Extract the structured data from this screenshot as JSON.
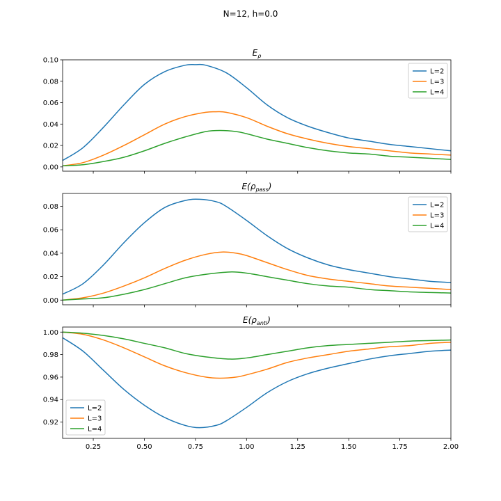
{
  "figure": {
    "suptitle": "N=12, h=0.0"
  },
  "colors": {
    "L2": "#1f77b4",
    "L3": "#ff7f0e",
    "L4": "#2ca02c"
  },
  "chart_data": [
    {
      "type": "line",
      "title_base": "E",
      "title_sub": "ρ",
      "legend_position": "upper right",
      "xlim": [
        0.1,
        2.0
      ],
      "ylim": [
        -0.004,
        0.1
      ],
      "x_ticks": [
        0.25,
        0.5,
        0.75,
        1.0,
        1.25,
        1.5,
        1.75,
        2.0
      ],
      "x_tick_labels_visible": false,
      "y_ticks": [
        0.0,
        0.02,
        0.04,
        0.06,
        0.08,
        0.1
      ],
      "y_tick_labels": [
        "0.00",
        "0.02",
        "0.04",
        "0.06",
        "0.08",
        "0.10"
      ],
      "series": [
        {
          "name": "L=2",
          "color": "#1f77b4",
          "x": [
            0.1,
            0.2,
            0.3,
            0.4,
            0.5,
            0.6,
            0.7,
            0.75,
            0.8,
            0.9,
            1.0,
            1.1,
            1.2,
            1.3,
            1.4,
            1.5,
            1.6,
            1.7,
            1.8,
            1.9,
            2.0
          ],
          "y": [
            0.006,
            0.018,
            0.037,
            0.058,
            0.077,
            0.089,
            0.095,
            0.0955,
            0.095,
            0.088,
            0.074,
            0.058,
            0.046,
            0.038,
            0.032,
            0.027,
            0.024,
            0.021,
            0.019,
            0.017,
            0.015
          ]
        },
        {
          "name": "L=3",
          "color": "#ff7f0e",
          "x": [
            0.1,
            0.2,
            0.3,
            0.4,
            0.5,
            0.6,
            0.7,
            0.8,
            0.85,
            0.9,
            1.0,
            1.1,
            1.2,
            1.3,
            1.4,
            1.5,
            1.6,
            1.7,
            1.8,
            1.9,
            2.0
          ],
          "y": [
            0.001,
            0.004,
            0.011,
            0.02,
            0.03,
            0.04,
            0.047,
            0.051,
            0.0515,
            0.051,
            0.046,
            0.038,
            0.031,
            0.026,
            0.022,
            0.019,
            0.017,
            0.015,
            0.013,
            0.012,
            0.011
          ]
        },
        {
          "name": "L=4",
          "color": "#2ca02c",
          "x": [
            0.1,
            0.2,
            0.3,
            0.4,
            0.5,
            0.6,
            0.7,
            0.8,
            0.87,
            0.95,
            1.0,
            1.1,
            1.2,
            1.3,
            1.4,
            1.5,
            1.6,
            1.7,
            1.8,
            1.9,
            2.0
          ],
          "y": [
            0.001,
            0.002,
            0.005,
            0.009,
            0.015,
            0.022,
            0.028,
            0.033,
            0.034,
            0.033,
            0.031,
            0.026,
            0.022,
            0.018,
            0.015,
            0.013,
            0.012,
            0.01,
            0.009,
            0.008,
            0.007
          ]
        }
      ]
    },
    {
      "type": "line",
      "title_base": "E(",
      "title_sub": "pass",
      "title_end": ")",
      "legend_position": "upper right",
      "xlim": [
        0.1,
        2.0
      ],
      "ylim": [
        -0.004,
        0.091
      ],
      "x_ticks": [
        0.25,
        0.5,
        0.75,
        1.0,
        1.25,
        1.5,
        1.75,
        2.0
      ],
      "x_tick_labels_visible": false,
      "y_ticks": [
        0.0,
        0.02,
        0.04,
        0.06,
        0.08
      ],
      "y_tick_labels": [
        "0.00",
        "0.02",
        "0.04",
        "0.06",
        "0.08"
      ],
      "series": [
        {
          "name": "L=2",
          "color": "#1f77b4",
          "x": [
            0.1,
            0.2,
            0.3,
            0.4,
            0.5,
            0.6,
            0.7,
            0.77,
            0.85,
            0.9,
            1.0,
            1.1,
            1.2,
            1.3,
            1.4,
            1.5,
            1.6,
            1.7,
            1.8,
            1.9,
            2.0
          ],
          "y": [
            0.005,
            0.014,
            0.03,
            0.049,
            0.066,
            0.079,
            0.085,
            0.086,
            0.084,
            0.08,
            0.068,
            0.055,
            0.044,
            0.036,
            0.03,
            0.026,
            0.023,
            0.02,
            0.018,
            0.016,
            0.015
          ]
        },
        {
          "name": "L=3",
          "color": "#ff7f0e",
          "x": [
            0.1,
            0.2,
            0.3,
            0.4,
            0.5,
            0.6,
            0.7,
            0.8,
            0.88,
            0.95,
            1.0,
            1.1,
            1.2,
            1.3,
            1.4,
            1.5,
            1.6,
            1.7,
            1.8,
            1.9,
            2.0
          ],
          "y": [
            0.0,
            0.002,
            0.006,
            0.012,
            0.019,
            0.027,
            0.034,
            0.039,
            0.041,
            0.04,
            0.038,
            0.032,
            0.026,
            0.021,
            0.018,
            0.016,
            0.014,
            0.012,
            0.011,
            0.01,
            0.009
          ]
        },
        {
          "name": "L=4",
          "color": "#2ca02c",
          "x": [
            0.1,
            0.2,
            0.3,
            0.4,
            0.5,
            0.6,
            0.7,
            0.8,
            0.92,
            1.0,
            1.1,
            1.2,
            1.3,
            1.4,
            1.5,
            1.6,
            1.7,
            1.8,
            1.9,
            2.0
          ],
          "y": [
            0.0,
            0.001,
            0.002,
            0.005,
            0.009,
            0.014,
            0.019,
            0.022,
            0.024,
            0.023,
            0.02,
            0.017,
            0.014,
            0.012,
            0.011,
            0.009,
            0.008,
            0.007,
            0.0065,
            0.006
          ]
        }
      ]
    },
    {
      "type": "line",
      "title_base": "E(",
      "title_sub": "anti",
      "title_end": ")",
      "legend_position": "lower left",
      "xlim": [
        0.1,
        2.0
      ],
      "ylim": [
        0.9055,
        1.0045
      ],
      "x_ticks": [
        0.25,
        0.5,
        0.75,
        1.0,
        1.25,
        1.5,
        1.75,
        2.0
      ],
      "x_tick_labels": [
        "0.25",
        "0.50",
        "0.75",
        "1.00",
        "1.25",
        "1.50",
        "1.75",
        "2.00"
      ],
      "y_ticks": [
        0.92,
        0.94,
        0.96,
        0.98,
        1.0
      ],
      "y_tick_labels": [
        "0.92",
        "0.94",
        "0.96",
        "0.98",
        "1.00"
      ],
      "series": [
        {
          "name": "L=2",
          "color": "#1f77b4",
          "x": [
            0.1,
            0.2,
            0.3,
            0.4,
            0.5,
            0.6,
            0.7,
            0.77,
            0.85,
            0.9,
            1.0,
            1.1,
            1.2,
            1.3,
            1.4,
            1.5,
            1.6,
            1.7,
            1.8,
            1.9,
            2.0
          ],
          "y": [
            0.995,
            0.983,
            0.966,
            0.949,
            0.935,
            0.924,
            0.917,
            0.915,
            0.917,
            0.921,
            0.933,
            0.946,
            0.956,
            0.963,
            0.968,
            0.972,
            0.976,
            0.979,
            0.981,
            0.983,
            0.984
          ]
        },
        {
          "name": "L=3",
          "color": "#ff7f0e",
          "x": [
            0.1,
            0.2,
            0.3,
            0.4,
            0.5,
            0.6,
            0.7,
            0.8,
            0.87,
            0.95,
            1.0,
            1.1,
            1.2,
            1.3,
            1.4,
            1.5,
            1.6,
            1.7,
            1.8,
            1.9,
            2.0
          ],
          "y": [
            1.0,
            0.998,
            0.993,
            0.986,
            0.978,
            0.97,
            0.964,
            0.96,
            0.959,
            0.96,
            0.962,
            0.967,
            0.973,
            0.977,
            0.98,
            0.983,
            0.985,
            0.987,
            0.988,
            0.99,
            0.991
          ]
        },
        {
          "name": "L=4",
          "color": "#2ca02c",
          "x": [
            0.1,
            0.2,
            0.3,
            0.4,
            0.5,
            0.6,
            0.7,
            0.8,
            0.92,
            1.0,
            1.1,
            1.2,
            1.3,
            1.4,
            1.5,
            1.6,
            1.7,
            1.8,
            1.9,
            2.0
          ],
          "y": [
            1.0,
            0.999,
            0.997,
            0.994,
            0.99,
            0.986,
            0.981,
            0.978,
            0.976,
            0.977,
            0.98,
            0.983,
            0.986,
            0.988,
            0.989,
            0.99,
            0.991,
            0.992,
            0.9925,
            0.993
          ]
        }
      ]
    }
  ]
}
